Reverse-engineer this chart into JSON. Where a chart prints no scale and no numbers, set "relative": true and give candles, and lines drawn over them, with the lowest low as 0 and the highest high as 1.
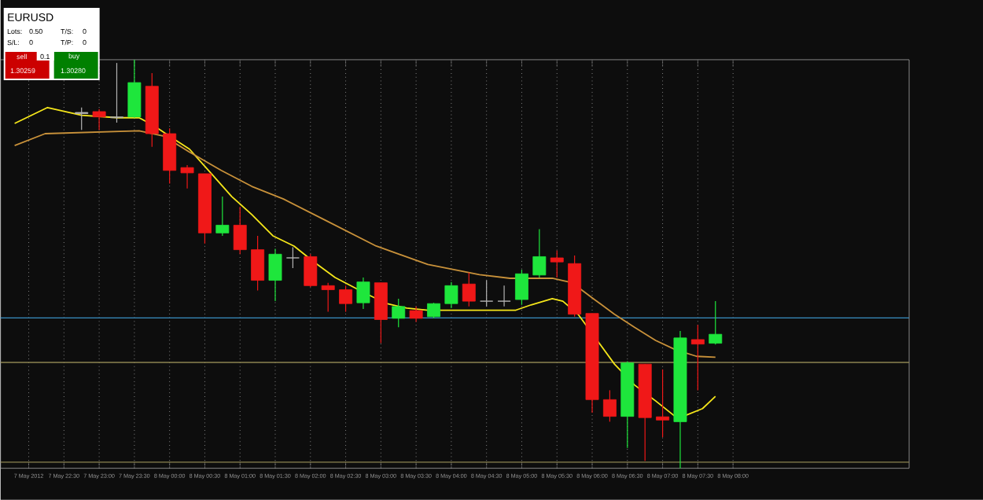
{
  "chart_data": {
    "type": "candlestick",
    "relative": true,
    "grid": true,
    "x": [
      "2012-05-07T22:45",
      "2012-05-07T23:00",
      "2012-05-07T23:15",
      "2012-05-07T23:30",
      "2012-05-07T23:45",
      "2012-05-08T00:00",
      "2012-05-08T00:15",
      "2012-05-08T00:30",
      "2012-05-08T00:45",
      "2012-05-08T01:00",
      "2012-05-08T01:15",
      "2012-05-08T01:30",
      "2012-05-08T01:45",
      "2012-05-08T02:00",
      "2012-05-08T02:15",
      "2012-05-08T02:30",
      "2012-05-08T02:45",
      "2012-05-08T03:00",
      "2012-05-08T03:15",
      "2012-05-08T03:30",
      "2012-05-08T03:45",
      "2012-05-08T04:00",
      "2012-05-08T04:15",
      "2012-05-08T04:30",
      "2012-05-08T04:45",
      "2012-05-08T05:00",
      "2012-05-08T05:15",
      "2012-05-08T05:30",
      "2012-05-08T05:45",
      "2012-05-08T06:00",
      "2012-05-08T06:15",
      "2012-05-08T06:30",
      "2012-05-08T06:45",
      "2012-05-08T07:00",
      "2012-05-08T07:15",
      "2012-05-08T07:30",
      "2012-05-08T07:45"
    ],
    "ohlc": [
      [
        0.871,
        0.883,
        0.828,
        0.868
      ],
      [
        0.873,
        0.879,
        0.828,
        0.86
      ],
      [
        0.858,
        0.992,
        0.846,
        0.86
      ],
      [
        0.86,
        1.0,
        0.858,
        0.944
      ],
      [
        0.935,
        0.967,
        0.787,
        0.819
      ],
      [
        0.819,
        0.832,
        0.697,
        0.729
      ],
      [
        0.736,
        0.742,
        0.685,
        0.723
      ],
      [
        0.721,
        0.721,
        0.55,
        0.576
      ],
      [
        0.576,
        0.665,
        0.569,
        0.595
      ],
      [
        0.595,
        0.64,
        0.524,
        0.535
      ],
      [
        0.535,
        0.569,
        0.435,
        0.46
      ],
      [
        0.46,
        0.537,
        0.409,
        0.524
      ],
      [
        0.515,
        0.541,
        0.49,
        0.515
      ],
      [
        0.518,
        0.524,
        0.444,
        0.447
      ],
      [
        0.447,
        0.454,
        0.383,
        0.437
      ],
      [
        0.437,
        0.447,
        0.383,
        0.403
      ],
      [
        0.405,
        0.467,
        0.39,
        0.456
      ],
      [
        0.454,
        0.454,
        0.306,
        0.364
      ],
      [
        0.367,
        0.415,
        0.345,
        0.396
      ],
      [
        0.386,
        0.396,
        0.358,
        0.367
      ],
      [
        0.371,
        0.405,
        0.367,
        0.403
      ],
      [
        0.403,
        0.456,
        0.392,
        0.447
      ],
      [
        0.451,
        0.479,
        0.396,
        0.409
      ],
      [
        0.409,
        0.46,
        0.396,
        0.409
      ],
      [
        0.409,
        0.447,
        0.396,
        0.409
      ],
      [
        0.413,
        0.486,
        0.4,
        0.476
      ],
      [
        0.473,
        0.585,
        0.467,
        0.518
      ],
      [
        0.515,
        0.533,
        0.467,
        0.505
      ],
      [
        0.501,
        0.521,
        0.371,
        0.377
      ],
      [
        0.379,
        0.379,
        0.136,
        0.168
      ],
      [
        0.168,
        0.191,
        0.114,
        0.127
      ],
      [
        0.127,
        0.262,
        0.05,
        0.258
      ],
      [
        0.255,
        0.255,
        0.018,
        0.124
      ],
      [
        0.126,
        0.242,
        0.076,
        0.118
      ],
      [
        0.114,
        0.336,
        0.0,
        0.319
      ],
      [
        0.315,
        0.351,
        0.191,
        0.304
      ],
      [
        0.306,
        0.409,
        0.303,
        0.328
      ]
    ],
    "colors": [
      "#b4b4b4",
      "#f01818",
      "#b4b4b4",
      "#1ee63c",
      "#f01818",
      "#f01818",
      "#f01818",
      "#f01818",
      "#1ee63c",
      "#f01818",
      "#f01818",
      "#1ee63c",
      "#b4b4b4",
      "#f01818",
      "#f01818",
      "#f01818",
      "#1ee63c",
      "#f01818",
      "#1ee63c",
      "#f01818",
      "#1ee63c",
      "#1ee63c",
      "#f01818",
      "#b4b4b4",
      "#b4b4b4",
      "#1ee63c",
      "#1ee63c",
      "#f01818",
      "#f01818",
      "#f01818",
      "#f01818",
      "#1ee63c",
      "#f01818",
      "#f01818",
      "#1ee63c",
      "#f01818",
      "#1ee63c"
    ],
    "series": [
      {
        "type": "line",
        "color": "#f5e61a",
        "x": [
          "2012-05-07T21:48",
          "2012-05-07T22:16",
          "2012-05-07T22:45",
          "2012-05-07T23:16",
          "2012-05-07T23:34",
          "2012-05-07T23:47",
          "2012-05-08T00:00",
          "2012-05-08T00:17",
          "2012-05-08T00:35",
          "2012-05-08T00:53",
          "2012-05-08T01:10",
          "2012-05-08T01:28",
          "2012-05-08T01:46",
          "2012-05-08T02:03",
          "2012-05-08T02:21",
          "2012-05-08T02:47",
          "2012-05-08T03:05",
          "2012-05-08T03:22",
          "2012-05-08T03:40",
          "2012-05-08T04:24",
          "2012-05-08T04:55",
          "2012-05-08T05:08",
          "2012-05-08T05:26",
          "2012-05-08T05:35",
          "2012-05-08T05:48",
          "2012-05-08T06:01",
          "2012-05-08T06:19",
          "2012-05-08T06:36",
          "2012-05-08T06:54",
          "2012-05-08T07:11",
          "2012-05-08T07:20",
          "2012-05-08T07:34",
          "2012-05-08T07:45"
        ],
        "values": [
          0.844,
          0.883,
          0.864,
          0.858,
          0.858,
          0.838,
          0.813,
          0.781,
          0.723,
          0.665,
          0.621,
          0.569,
          0.544,
          0.505,
          0.467,
          0.428,
          0.403,
          0.392,
          0.387,
          0.387,
          0.387,
          0.4,
          0.415,
          0.409,
          0.377,
          null,
          0.255,
          0.204,
          0.165,
          0.126,
          0.13,
          0.146,
          0.176
        ]
      },
      {
        "type": "line",
        "color": "#c8913a",
        "x": [
          "2012-05-07T21:48",
          "2012-05-07T22:14",
          "2012-05-07T23:34",
          "2012-05-07T23:55",
          "2012-05-08T00:17",
          "2012-05-08T00:44",
          "2012-05-08T01:10",
          "2012-05-08T01:37",
          "2012-05-08T02:12",
          "2012-05-08T02:56",
          "2012-05-08T03:40",
          "2012-05-08T04:24",
          "2012-05-08T04:50",
          "2012-05-08T05:26",
          "2012-05-08T05:43",
          "2012-05-08T06:01",
          "2012-05-08T06:19",
          "2012-05-08T06:36",
          "2012-05-08T06:54",
          "2012-05-08T07:11",
          "2012-05-08T07:29",
          "2012-05-08T07:45"
        ],
        "values": [
          0.79,
          0.819,
          0.826,
          0.813,
          0.774,
          0.729,
          0.69,
          0.659,
          0.608,
          0.544,
          0.499,
          0.474,
          0.465,
          0.465,
          0.454,
          0.415,
          0.377,
          0.345,
          0.313,
          0.29,
          0.274,
          0.272
        ]
      }
    ],
    "ref_lines": [
      {
        "axis": "y",
        "value": 0.368,
        "color": "#3a8fc4"
      },
      {
        "axis": "y",
        "value": 0.259,
        "color": "#8c8450"
      },
      {
        "axis": "y",
        "value": 0.015,
        "color": "#8c8450"
      }
    ],
    "xlim": [
      "2012-05-07T21:36",
      "2012-05-08T10:30"
    ],
    "xticks": [
      {
        "value": "2012-05-07T22:00",
        "label": "7 May 2012"
      },
      {
        "value": "2012-05-07T22:30",
        "label": "7 May 22:30"
      },
      {
        "value": "2012-05-07T23:00",
        "label": "7 May 23:00"
      },
      {
        "value": "2012-05-07T23:30",
        "label": "7 May 23:30"
      },
      {
        "value": "2012-05-08T00:00",
        "label": "8 May 00:00"
      },
      {
        "value": "2012-05-08T00:30",
        "label": "8 May 00:30"
      },
      {
        "value": "2012-05-08T01:00",
        "label": "8 May 01:00"
      },
      {
        "value": "2012-05-08T01:30",
        "label": "8 May 01:30"
      },
      {
        "value": "2012-05-08T02:00",
        "label": "8 May 02:00"
      },
      {
        "value": "2012-05-08T02:30",
        "label": "8 May 02:30"
      },
      {
        "value": "2012-05-08T03:00",
        "label": "8 May 03:00"
      },
      {
        "value": "2012-05-08T03:30",
        "label": "8 May 03:30"
      },
      {
        "value": "2012-05-08T04:00",
        "label": "8 May 04:00"
      },
      {
        "value": "2012-05-08T04:30",
        "label": "8 May 04:30"
      },
      {
        "value": "2012-05-08T05:00",
        "label": "8 May 05:00"
      },
      {
        "value": "2012-05-08T05:30",
        "label": "8 May 05:30"
      },
      {
        "value": "2012-05-08T06:00",
        "label": "8 May 06:00"
      },
      {
        "value": "2012-05-08T06:30",
        "label": "8 May 06:30"
      },
      {
        "value": "2012-05-08T07:00",
        "label": "8 May 07:00"
      },
      {
        "value": "2012-05-08T07:30",
        "label": "8 May 07:30"
      },
      {
        "value": "2012-05-08T08:00",
        "label": "8 May 08:00"
      }
    ],
    "annotations": [
      "EURUSD",
      "Lots:",
      "0.50",
      "S/L:",
      "0",
      "T/S:",
      "0",
      "T/P:",
      "0",
      "sell",
      "0.1",
      "buy",
      "1.30259",
      "1.30280"
    ]
  }
}
